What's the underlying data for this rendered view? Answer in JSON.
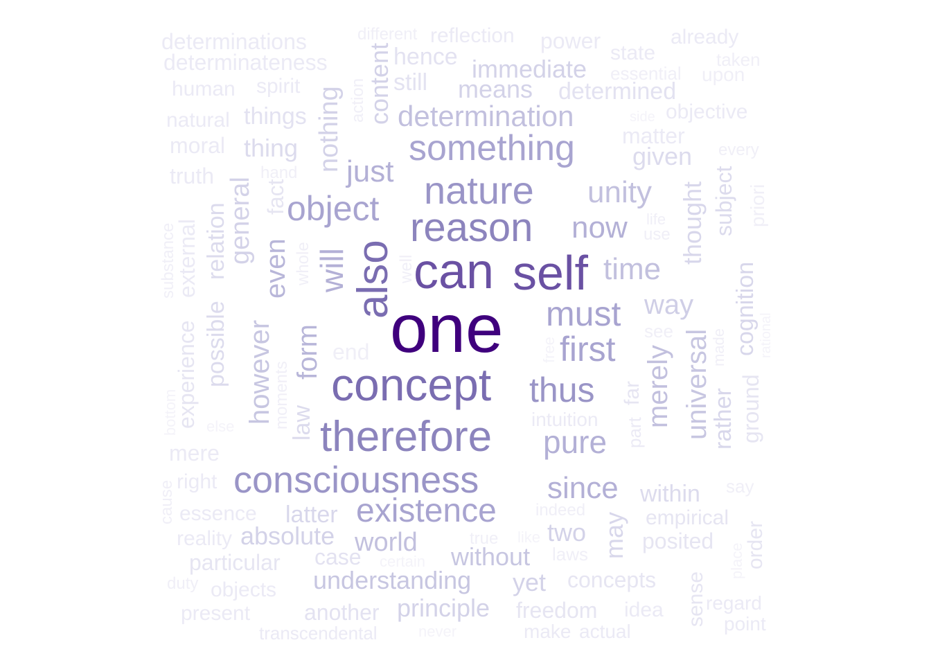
{
  "wordcloud": {
    "words": [
      {
        "text": "one",
        "weight": 1.0,
        "color": "#3f007d"
      },
      {
        "text": "can",
        "weight": 0.74,
        "color": "#6a51a3"
      },
      {
        "text": "self",
        "weight": 0.72,
        "color": "#6a51a3"
      },
      {
        "text": "concept",
        "weight": 0.67,
        "color": "#7a6db1"
      },
      {
        "text": "also",
        "weight": 0.64,
        "color": "#7a6db1"
      },
      {
        "text": "therefore",
        "weight": 0.64,
        "color": "#8c84bd"
      },
      {
        "text": "reason",
        "weight": 0.6,
        "color": "#8c84bd"
      },
      {
        "text": "nature",
        "weight": 0.58,
        "color": "#9a95c7"
      },
      {
        "text": "consciousness",
        "weight": 0.56,
        "color": "#9a95c7"
      },
      {
        "text": "something",
        "weight": 0.53,
        "color": "#a8a4d0"
      },
      {
        "text": "thus",
        "weight": 0.52,
        "color": "#9a95c7"
      },
      {
        "text": "must",
        "weight": 0.5,
        "color": "#a8a4d0"
      },
      {
        "text": "object",
        "weight": 0.5,
        "color": "#a8a4d0"
      },
      {
        "text": "first",
        "weight": 0.5,
        "color": "#a8a4d0"
      },
      {
        "text": "existence",
        "weight": 0.47,
        "color": "#a8a4d0"
      },
      {
        "text": "will",
        "weight": 0.46,
        "color": "#b3b0d6"
      },
      {
        "text": "pure",
        "weight": 0.45,
        "color": "#b3b0d6"
      },
      {
        "text": "since",
        "weight": 0.42,
        "color": "#b3b0d6"
      },
      {
        "text": "now",
        "weight": 0.42,
        "color": "#b3b0d6"
      },
      {
        "text": "just",
        "weight": 0.42,
        "color": "#b3b0d6"
      },
      {
        "text": "even",
        "weight": 0.4,
        "color": "#b8b6d9"
      },
      {
        "text": "form",
        "weight": 0.4,
        "color": "#b8b6d9"
      },
      {
        "text": "time",
        "weight": 0.4,
        "color": "#c2c0de"
      },
      {
        "text": "unity",
        "weight": 0.4,
        "color": "#c2c0de"
      },
      {
        "text": "determination",
        "weight": 0.38,
        "color": "#c2c0de"
      },
      {
        "text": "world",
        "weight": 0.37,
        "color": "#c2c0de"
      },
      {
        "text": "merely",
        "weight": 0.37,
        "color": "#c2c0de"
      },
      {
        "text": "universal",
        "weight": 0.36,
        "color": "#c7c6e1"
      },
      {
        "text": "however",
        "weight": 0.36,
        "color": "#c7c6e1"
      },
      {
        "text": "way",
        "weight": 0.36,
        "color": "#cfcee6"
      },
      {
        "text": "without",
        "weight": 0.35,
        "color": "#c7c6e1"
      },
      {
        "text": "understanding",
        "weight": 0.34,
        "color": "#c7c6e1"
      },
      {
        "text": "nothing",
        "weight": 0.34,
        "color": "#d3d2e8"
      },
      {
        "text": "content",
        "weight": 0.33,
        "color": "#d3d2e8"
      },
      {
        "text": "general",
        "weight": 0.33,
        "color": "#d3d2e8"
      },
      {
        "text": "immediate",
        "weight": 0.33,
        "color": "#d3d2e8"
      },
      {
        "text": "means",
        "weight": 0.32,
        "color": "#d3d2e8"
      },
      {
        "text": "absolute",
        "weight": 0.32,
        "color": "#d3d2e8"
      },
      {
        "text": "principle",
        "weight": 0.32,
        "color": "#d3d2e8"
      },
      {
        "text": "yet",
        "weight": 0.32,
        "color": "#d3d2e8"
      },
      {
        "text": "thought",
        "weight": 0.32,
        "color": "#d8d7eb"
      },
      {
        "text": "two",
        "weight": 0.31,
        "color": "#d3d2e8"
      },
      {
        "text": "may",
        "weight": 0.31,
        "color": "#d8d7eb"
      },
      {
        "text": "latter",
        "weight": 0.3,
        "color": "#d8d7eb"
      },
      {
        "text": "cognition",
        "weight": 0.3,
        "color": "#d8d7eb"
      },
      {
        "text": "rather",
        "weight": 0.3,
        "color": "#d8d7eb"
      },
      {
        "text": "thing",
        "weight": 0.29,
        "color": "#dcdbed"
      },
      {
        "text": "given",
        "weight": 0.29,
        "color": "#dcdbed"
      },
      {
        "text": "subject",
        "weight": 0.29,
        "color": "#dcdbed"
      },
      {
        "text": "relation",
        "weight": 0.29,
        "color": "#dcdbed"
      },
      {
        "text": "possible",
        "weight": 0.29,
        "color": "#dcdbed"
      },
      {
        "text": "law",
        "weight": 0.28,
        "color": "#dcdbed"
      },
      {
        "text": "within",
        "weight": 0.28,
        "color": "#dcdbed"
      },
      {
        "text": "determined",
        "weight": 0.28,
        "color": "#e3e2f1"
      },
      {
        "text": "things",
        "weight": 0.27,
        "color": "#e3e2f1"
      },
      {
        "text": "still",
        "weight": 0.27,
        "color": "#e3e2f1"
      },
      {
        "text": "hence",
        "weight": 0.27,
        "color": "#e3e2f1"
      },
      {
        "text": "case",
        "weight": 0.26,
        "color": "#e3e2f1"
      },
      {
        "text": "another",
        "weight": 0.26,
        "color": "#e3e2f1"
      },
      {
        "text": "concepts",
        "weight": 0.26,
        "color": "#e6e5f2"
      },
      {
        "text": "freedom",
        "weight": 0.26,
        "color": "#e6e5f2"
      },
      {
        "text": "posited",
        "weight": 0.26,
        "color": "#e6e5f2"
      },
      {
        "text": "empirical",
        "weight": 0.25,
        "color": "#e6e5f2"
      },
      {
        "text": "ground",
        "weight": 0.25,
        "color": "#e6e5f2"
      },
      {
        "text": "fact",
        "weight": 0.25,
        "color": "#e6e5f2"
      },
      {
        "text": "experience",
        "weight": 0.25,
        "color": "#e6e5f2"
      },
      {
        "text": "particular",
        "weight": 0.25,
        "color": "#e6e5f2"
      },
      {
        "text": "far",
        "weight": 0.24,
        "color": "#e6e5f2"
      },
      {
        "text": "order",
        "weight": 0.24,
        "color": "#e6e5f2"
      },
      {
        "text": "sense",
        "weight": 0.24,
        "color": "#e6e5f2"
      },
      {
        "text": "determinations",
        "weight": 0.24,
        "color": "#ebeaf5"
      },
      {
        "text": "determinateness",
        "weight": 0.24,
        "color": "#ebeaf5"
      },
      {
        "text": "reflection",
        "weight": 0.23,
        "color": "#ebeaf5"
      },
      {
        "text": "power",
        "weight": 0.23,
        "color": "#ebeaf5"
      },
      {
        "text": "state",
        "weight": 0.23,
        "color": "#ebeaf5"
      },
      {
        "text": "already",
        "weight": 0.22,
        "color": "#ebeaf5"
      },
      {
        "text": "objective",
        "weight": 0.22,
        "color": "#ebeaf5"
      },
      {
        "text": "matter",
        "weight": 0.22,
        "color": "#ebeaf5"
      },
      {
        "text": "spirit",
        "weight": 0.22,
        "color": "#ebeaf5"
      },
      {
        "text": "human",
        "weight": 0.22,
        "color": "#ebeaf5"
      },
      {
        "text": "moral",
        "weight": 0.22,
        "color": "#ebeaf5"
      },
      {
        "text": "truth",
        "weight": 0.22,
        "color": "#ebeaf5"
      },
      {
        "text": "mere",
        "weight": 0.22,
        "color": "#ebeaf5"
      },
      {
        "text": "essence",
        "weight": 0.22,
        "color": "#ebeaf5"
      },
      {
        "text": "intuition",
        "weight": 0.22,
        "color": "#ebeaf5"
      },
      {
        "text": "objects",
        "weight": 0.22,
        "color": "#ebeaf5"
      },
      {
        "text": "present",
        "weight": 0.22,
        "color": "#ebeaf5"
      },
      {
        "text": "make",
        "weight": 0.21,
        "color": "#ebeaf5"
      },
      {
        "text": "actual",
        "weight": 0.21,
        "color": "#ebeaf5"
      },
      {
        "text": "idea",
        "weight": 0.21,
        "color": "#ebeaf5"
      },
      {
        "text": "reality",
        "weight": 0.21,
        "color": "#ebeaf5"
      },
      {
        "text": "external",
        "weight": 0.21,
        "color": "#ebeaf5"
      },
      {
        "text": "transcendental",
        "weight": 0.2,
        "color": "#ebeaf5"
      },
      {
        "text": "part",
        "weight": 0.2,
        "color": "#ebeaf5"
      },
      {
        "text": "natural",
        "weight": 0.2,
        "color": "#ebeaf5"
      },
      {
        "text": "right",
        "weight": 0.2,
        "color": "#ebeaf5"
      },
      {
        "text": "regard",
        "weight": 0.2,
        "color": "#ebeaf5"
      },
      {
        "text": "point",
        "weight": 0.2,
        "color": "#ebeaf5"
      },
      {
        "text": "end",
        "weight": 0.2,
        "color": "#f0eff7"
      },
      {
        "text": "priori",
        "weight": 0.2,
        "color": "#f0eff7"
      },
      {
        "text": "essential",
        "weight": 0.19,
        "color": "#f0eff7"
      },
      {
        "text": "upon",
        "weight": 0.19,
        "color": "#f0eff7"
      },
      {
        "text": "taken",
        "weight": 0.18,
        "color": "#f0eff7"
      },
      {
        "text": "different",
        "weight": 0.18,
        "color": "#f0eff7"
      },
      {
        "text": "every",
        "weight": 0.18,
        "color": "#f0eff7"
      },
      {
        "text": "see",
        "weight": 0.18,
        "color": "#f0eff7"
      },
      {
        "text": "laws",
        "weight": 0.18,
        "color": "#f0eff7"
      },
      {
        "text": "indeed",
        "weight": 0.18,
        "color": "#f0eff7"
      },
      {
        "text": "true",
        "weight": 0.17,
        "color": "#f0eff7"
      },
      {
        "text": "duty",
        "weight": 0.17,
        "color": "#f0eff7"
      },
      {
        "text": "say",
        "weight": 0.17,
        "color": "#f0eff7"
      },
      {
        "text": "hand",
        "weight": 0.17,
        "color": "#f0eff7"
      },
      {
        "text": "action",
        "weight": 0.17,
        "color": "#f0eff7"
      },
      {
        "text": "whole",
        "weight": 0.17,
        "color": "#f0eff7"
      },
      {
        "text": "well",
        "weight": 0.17,
        "color": "#f0eff7"
      },
      {
        "text": "moments",
        "weight": 0.17,
        "color": "#f0eff7"
      },
      {
        "text": "substance",
        "weight": 0.17,
        "color": "#f0eff7"
      },
      {
        "text": "cause",
        "weight": 0.17,
        "color": "#f0eff7"
      },
      {
        "text": "made",
        "weight": 0.17,
        "color": "#f0eff7"
      },
      {
        "text": "life",
        "weight": 0.17,
        "color": "#f0eff7"
      },
      {
        "text": "use",
        "weight": 0.17,
        "color": "#f0eff7"
      },
      {
        "text": "free",
        "weight": 0.16,
        "color": "#f4f3f9"
      },
      {
        "text": "like",
        "weight": 0.16,
        "color": "#f4f3f9"
      },
      {
        "text": "never",
        "weight": 0.16,
        "color": "#f4f3f9"
      },
      {
        "text": "certain",
        "weight": 0.16,
        "color": "#f4f3f9"
      },
      {
        "text": "place",
        "weight": 0.16,
        "color": "#f4f3f9"
      },
      {
        "text": "rational",
        "weight": 0.16,
        "color": "#f4f3f9"
      },
      {
        "text": "else",
        "weight": 0.16,
        "color": "#f4f3f9"
      },
      {
        "text": "bottom",
        "weight": 0.16,
        "color": "#f4f3f9"
      },
      {
        "text": "side",
        "weight": 0.16,
        "color": "#f4f3f9"
      }
    ]
  }
}
